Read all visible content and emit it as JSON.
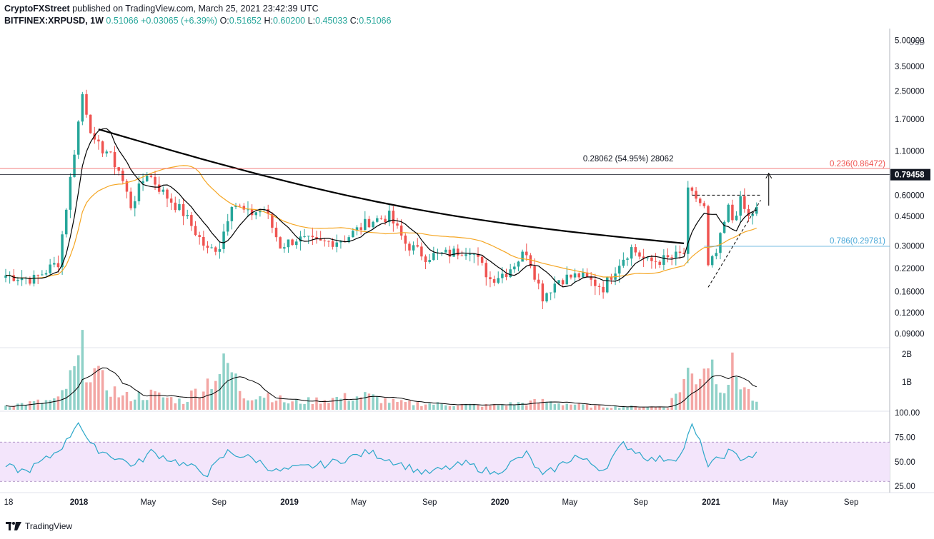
{
  "header": {
    "publisher": "CryptoFXStreet",
    "published_text": "published on TradingView.com, March 25, 2021 23:42:39 UTC",
    "symbol": "BITFINEX:XRPUSD, 1W",
    "last": "0.51066",
    "change": "+0.03065 (+6.39%)",
    "open_label": "O:",
    "open": "0.51652",
    "high_label": "H:",
    "high": "0.60200",
    "low_label": "L:",
    "low": "0.45033",
    "close_label": "C:",
    "close": "0.51066"
  },
  "brand": {
    "name": "TradingView"
  },
  "colors": {
    "up": "#26a69a",
    "down": "#ef5350",
    "up_vol": "#8fd1c8",
    "down_vol": "#f3a6a4",
    "ma_fast": "#000000",
    "ma_slow": "#f5a623",
    "rsi": "#2aa7c9",
    "rsi_band": "#f3e5fb",
    "fib": "#ef5350",
    "fib_786": "#4aa8d8"
  },
  "chart_data": [
    {
      "type": "candlestick",
      "pane": "price",
      "scale": "log",
      "currency_label": "USD",
      "y_ticks": [
        "5.00000",
        "3.50000",
        "2.50000",
        "1.70000",
        "1.10000",
        "0.60000",
        "0.45000",
        "0.30000",
        "0.22000",
        "0.16000",
        "0.12000",
        "0.09000"
      ],
      "y_tick_values": [
        5.0,
        3.5,
        2.5,
        1.7,
        1.1,
        0.6,
        0.45,
        0.3,
        0.22,
        0.16,
        0.12,
        0.09
      ],
      "x_ticks": [
        "18",
        "2018",
        "May",
        "Sep",
        "2019",
        "May",
        "Sep",
        "2020",
        "May",
        "Sep",
        "2021",
        "May",
        "Sep"
      ],
      "x_tick_dates": [
        "2017-09-01",
        "2018-01-01",
        "2018-05-01",
        "2018-09-01",
        "2019-01-01",
        "2019-05-01",
        "2019-09-01",
        "2020-01-01",
        "2020-05-01",
        "2020-09-01",
        "2021-01-01",
        "2021-05-01",
        "2021-09-01"
      ],
      "x_range": [
        "2017-08-27",
        "2021-11-03"
      ],
      "y_range": [
        0.075,
        5.6
      ],
      "price_anchors": [
        [
          "2017-08-27",
          0.2
        ],
        [
          "2017-10-15",
          0.19
        ],
        [
          "2017-11-26",
          0.24
        ],
        [
          "2017-12-17",
          0.75
        ],
        [
          "2018-01-07",
          2.4
        ],
        [
          "2018-01-28",
          1.2
        ],
        [
          "2018-02-18",
          1.1
        ],
        [
          "2018-03-11",
          0.85
        ],
        [
          "2018-04-01",
          0.52
        ],
        [
          "2018-04-29",
          0.82
        ],
        [
          "2018-05-27",
          0.62
        ],
        [
          "2018-07-01",
          0.47
        ],
        [
          "2018-08-12",
          0.28
        ],
        [
          "2018-09-02",
          0.3
        ],
        [
          "2018-09-23",
          0.55
        ],
        [
          "2018-10-21",
          0.46
        ],
        [
          "2018-11-18",
          0.5
        ],
        [
          "2018-12-16",
          0.3
        ],
        [
          "2019-01-13",
          0.33
        ],
        [
          "2019-02-24",
          0.31
        ],
        [
          "2019-04-07",
          0.33
        ],
        [
          "2019-05-19",
          0.42
        ],
        [
          "2019-06-23",
          0.45
        ],
        [
          "2019-07-21",
          0.31
        ],
        [
          "2019-08-25",
          0.26
        ],
        [
          "2019-10-06",
          0.27
        ],
        [
          "2019-11-10",
          0.29
        ],
        [
          "2019-12-15",
          0.19
        ],
        [
          "2020-01-12",
          0.21
        ],
        [
          "2020-02-16",
          0.28
        ],
        [
          "2020-03-15",
          0.15
        ],
        [
          "2020-04-12",
          0.19
        ],
        [
          "2020-05-17",
          0.2
        ],
        [
          "2020-06-28",
          0.17
        ],
        [
          "2020-07-26",
          0.24
        ],
        [
          "2020-08-16",
          0.29
        ],
        [
          "2020-09-13",
          0.24
        ],
        [
          "2020-10-18",
          0.25
        ],
        [
          "2020-11-15",
          0.27
        ],
        [
          "2020-11-22",
          0.62
        ],
        [
          "2020-12-06",
          0.58
        ],
        [
          "2020-12-20",
          0.5
        ],
        [
          "2020-12-27",
          0.22
        ],
        [
          "2021-01-10",
          0.27
        ],
        [
          "2021-01-31",
          0.5
        ],
        [
          "2021-02-07",
          0.43
        ],
        [
          "2021-02-21",
          0.55
        ],
        [
          "2021-03-07",
          0.44
        ],
        [
          "2021-03-21",
          0.51
        ]
      ],
      "annotations": {
        "measured_move_text": "0.28062 (54.95%) 28062",
        "fib_236_label": "0.236(0.86472)",
        "fib_236_value": 0.86472,
        "fib_786_label": "0.786(0.29781)",
        "fib_786_value": 0.29781,
        "current_price_label": "0.79458",
        "current_price_value": 0.79458,
        "triangle_top": 0.6,
        "trendline": [
          [
            "2018-02-04",
            1.48
          ],
          [
            "2020-11-15",
            0.31
          ]
        ],
        "ascending_line": [
          [
            "2020-12-27",
            0.17
          ],
          [
            "2021-03-28",
            0.56
          ]
        ],
        "target_arrow": {
          "date": "2021-04-11",
          "from": 0.52,
          "to": 0.81
        },
        "triangle_base_date": "2020-11-29"
      }
    },
    {
      "type": "bar",
      "pane": "volume",
      "y_ticks": [
        "2B",
        "1B"
      ],
      "y_tick_values": [
        2.0,
        1.0
      ],
      "y_range": [
        0,
        2.2
      ],
      "unit": "B",
      "volume_anchors": [
        [
          "2017-08-27",
          0.15
        ],
        [
          "2017-11-26",
          0.35
        ],
        [
          "2017-12-24",
          1.3
        ],
        [
          "2018-01-07",
          2.0
        ],
        [
          "2018-02-04",
          1.1
        ],
        [
          "2018-03-18",
          0.45
        ],
        [
          "2018-05-06",
          0.55
        ],
        [
          "2018-07-01",
          0.3
        ],
        [
          "2018-09-16",
          1.6
        ],
        [
          "2018-10-14",
          0.5
        ],
        [
          "2018-11-25",
          0.55
        ],
        [
          "2018-12-30",
          0.25
        ],
        [
          "2019-05-12",
          0.5
        ],
        [
          "2019-07-07",
          0.25
        ],
        [
          "2019-12-15",
          0.15
        ],
        [
          "2020-03-15",
          0.3
        ],
        [
          "2020-06-14",
          0.12
        ],
        [
          "2020-10-18",
          0.1
        ],
        [
          "2020-11-22",
          1.3
        ],
        [
          "2020-12-06",
          1.2
        ],
        [
          "2020-12-27",
          1.9
        ],
        [
          "2021-01-24",
          0.8
        ],
        [
          "2021-02-07",
          1.45
        ],
        [
          "2021-03-21",
          0.2
        ]
      ]
    },
    {
      "type": "line",
      "pane": "rsi",
      "y_ticks": [
        "100.00",
        "75.00",
        "50.00",
        "25.00"
      ],
      "y_tick_values": [
        100,
        75,
        50,
        25
      ],
      "y_range": [
        20,
        100
      ],
      "band": [
        30,
        70
      ],
      "rsi_anchors": [
        [
          "2017-08-27",
          45
        ],
        [
          "2017-10-01",
          40
        ],
        [
          "2017-11-12",
          55
        ],
        [
          "2017-12-10",
          70
        ],
        [
          "2017-12-31",
          92
        ],
        [
          "2018-01-21",
          66
        ],
        [
          "2018-03-04",
          55
        ],
        [
          "2018-04-08",
          46
        ],
        [
          "2018-05-06",
          60
        ],
        [
          "2018-08-12",
          38
        ],
        [
          "2018-09-16",
          60
        ],
        [
          "2018-11-04",
          52
        ],
        [
          "2018-12-09",
          40
        ],
        [
          "2019-03-10",
          48
        ],
        [
          "2019-05-19",
          60
        ],
        [
          "2019-08-25",
          38
        ],
        [
          "2019-11-03",
          48
        ],
        [
          "2019-12-22",
          38
        ],
        [
          "2020-02-16",
          58
        ],
        [
          "2020-03-15",
          35
        ],
        [
          "2020-05-10",
          56
        ],
        [
          "2020-06-28",
          42
        ],
        [
          "2020-08-02",
          68
        ],
        [
          "2020-09-20",
          52
        ],
        [
          "2020-11-08",
          55
        ],
        [
          "2020-11-29",
          86
        ],
        [
          "2020-12-20",
          60
        ],
        [
          "2020-12-27",
          45
        ],
        [
          "2021-01-31",
          60
        ],
        [
          "2021-02-21",
          54
        ],
        [
          "2021-03-21",
          57
        ]
      ]
    }
  ]
}
